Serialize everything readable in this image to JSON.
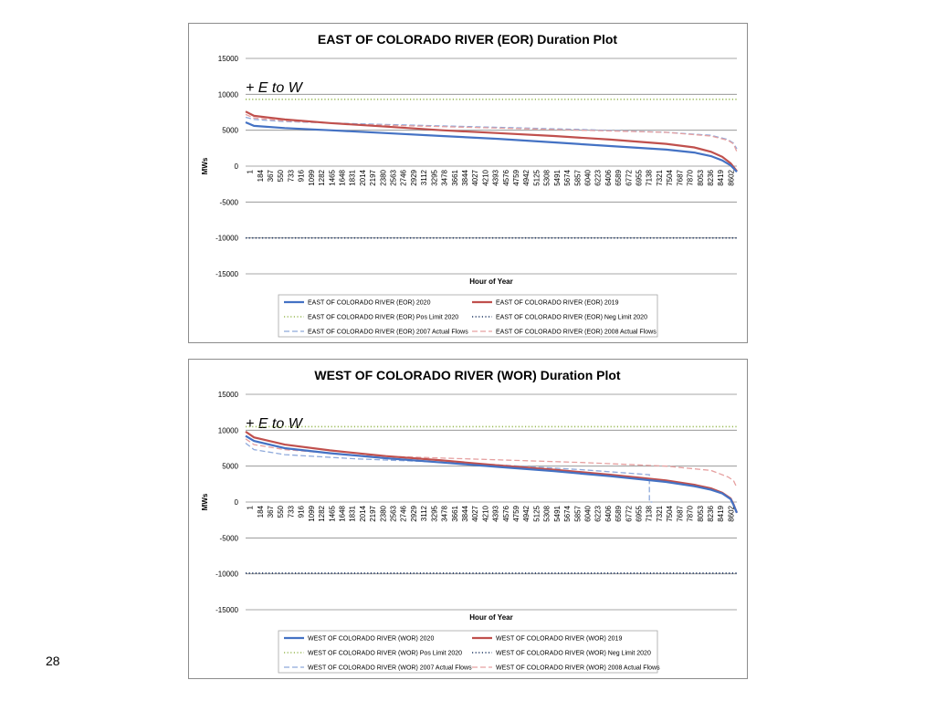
{
  "page_number": "28",
  "chart_data": [
    {
      "type": "line",
      "title": "EAST OF COLORADO RIVER (EOR) Duration Plot",
      "xlabel": "Hour of Year",
      "ylabel": "MWs",
      "annotation": "+ E to W",
      "ylim": [
        -15000,
        15000
      ],
      "yticks": [
        15000,
        10000,
        5000,
        0,
        -5000,
        -10000,
        -15000
      ],
      "x_tick_labels": [
        "1",
        "184",
        "367",
        "550",
        "733",
        "916",
        "1099",
        "1282",
        "1465",
        "1648",
        "1831",
        "2014",
        "2197",
        "2380",
        "2563",
        "2746",
        "2929",
        "3112",
        "3295",
        "3478",
        "3661",
        "3844",
        "4027",
        "4210",
        "4393",
        "4576",
        "4759",
        "4942",
        "5125",
        "5308",
        "5491",
        "5674",
        "5857",
        "6040",
        "6223",
        "6406",
        "6589",
        "6772",
        "6955",
        "7138",
        "7321",
        "7504",
        "7687",
        "7870",
        "8053",
        "8236",
        "8419",
        "8602"
      ],
      "grid": true,
      "legend_position": "bottom",
      "series": [
        {
          "name": "EAST OF COLORADO RIVER (EOR) 2020",
          "color": "#4472c4",
          "style": "solid",
          "x": [
            1,
            150,
            700,
            1500,
            2500,
            3500,
            4500,
            5500,
            6500,
            7500,
            8000,
            8300,
            8500,
            8650,
            8700,
            8760
          ],
          "y": [
            6100,
            5600,
            5300,
            5000,
            4600,
            4200,
            3800,
            3300,
            2800,
            2300,
            1900,
            1400,
            800,
            100,
            -300,
            -800
          ]
        },
        {
          "name": "EAST OF COLORADO RIVER (EOR) 2019",
          "color": "#c0504d",
          "style": "solid",
          "x": [
            1,
            150,
            700,
            1500,
            2500,
            3500,
            4500,
            5500,
            6500,
            7500,
            8000,
            8300,
            8500,
            8650,
            8700,
            8760
          ],
          "y": [
            7600,
            7000,
            6500,
            6000,
            5500,
            5000,
            4600,
            4200,
            3700,
            3100,
            2600,
            2000,
            1300,
            400,
            -100,
            -700
          ]
        },
        {
          "name": "EAST OF COLORADO RIVER (EOR) Pos Limit 2020",
          "color": "#9bbb59",
          "style": "dotted",
          "x": [
            1,
            8760
          ],
          "y": [
            9300,
            9300
          ]
        },
        {
          "name": "EAST OF COLORADO RIVER (EOR) Neg Limit 2020",
          "color": "#1f3864",
          "style": "dotted",
          "x": [
            1,
            8760
          ],
          "y": [
            -10000,
            -10000
          ]
        },
        {
          "name": "EAST OF COLORADO RIVER (EOR) 2007 Actual Flows",
          "color": "#8ea9db",
          "style": "dashed",
          "x": [
            1,
            150,
            700,
            2000,
            4000,
            6000,
            7500,
            8300,
            8600,
            8700,
            8760
          ],
          "y": [
            6800,
            6500,
            6200,
            5900,
            5500,
            5100,
            4700,
            4300,
            3700,
            3200,
            2400
          ]
        },
        {
          "name": "EAST OF COLORADO RIVER (EOR) 2008 Actual Flows",
          "color": "#e6a0a0",
          "style": "dashed",
          "x": [
            1,
            150,
            700,
            2000,
            4000,
            6000,
            7500,
            8300,
            8600,
            8700,
            8760
          ],
          "y": [
            7200,
            6700,
            6300,
            5800,
            5400,
            5000,
            4700,
            4200,
            3600,
            3100,
            2000
          ]
        }
      ]
    },
    {
      "type": "line",
      "title": "WEST OF COLORADO RIVER (WOR) Duration Plot",
      "xlabel": "Hour of Year",
      "ylabel": "MWs",
      "annotation": "+ E to W",
      "ylim": [
        -15000,
        15000
      ],
      "yticks": [
        15000,
        10000,
        5000,
        0,
        -5000,
        -10000,
        -15000
      ],
      "x_tick_labels": [
        "1",
        "184",
        "367",
        "550",
        "733",
        "916",
        "1099",
        "1282",
        "1465",
        "1648",
        "1831",
        "2014",
        "2197",
        "2380",
        "2563",
        "2746",
        "2929",
        "3112",
        "3295",
        "3478",
        "3661",
        "3844",
        "4027",
        "4210",
        "4393",
        "4576",
        "4759",
        "4942",
        "5125",
        "5308",
        "5491",
        "5674",
        "5857",
        "6040",
        "6223",
        "6406",
        "6589",
        "6772",
        "6955",
        "7138",
        "7321",
        "7504",
        "7687",
        "7870",
        "8053",
        "8236",
        "8419",
        "8602"
      ],
      "grid": true,
      "legend_position": "bottom",
      "series": [
        {
          "name": "WEST OF COLORADO RIVER (WOR) 2020",
          "color": "#4472c4",
          "style": "solid",
          "x": [
            1,
            150,
            700,
            1500,
            2500,
            3500,
            4500,
            5500,
            6500,
            7500,
            8000,
            8300,
            8500,
            8650,
            8700,
            8760
          ],
          "y": [
            9200,
            8500,
            7500,
            6800,
            6100,
            5500,
            4900,
            4300,
            3600,
            2800,
            2200,
            1700,
            1200,
            400,
            -400,
            -1500
          ]
        },
        {
          "name": "WEST OF COLORADO RIVER (WOR) 2019",
          "color": "#c0504d",
          "style": "solid",
          "x": [
            1,
            150,
            700,
            1500,
            2500,
            3500,
            4500,
            5500,
            6500,
            7500,
            8000,
            8300,
            8500,
            8650,
            8700,
            8760
          ],
          "y": [
            9800,
            9000,
            8000,
            7200,
            6400,
            5800,
            5100,
            4500,
            3800,
            3000,
            2400,
            1900,
            1300,
            500,
            -300,
            -1500
          ]
        },
        {
          "name": "WEST OF COLORADO RIVER (WOR) Pos Limit 2020",
          "color": "#9bbb59",
          "style": "dotted",
          "x": [
            1,
            8760
          ],
          "y": [
            10500,
            10500
          ]
        },
        {
          "name": "WEST OF COLORADO RIVER (WOR) Neg Limit 2020",
          "color": "#1f3864",
          "style": "dotted",
          "x": [
            1,
            8760
          ],
          "y": [
            -9900,
            -9900
          ]
        },
        {
          "name": "WEST OF COLORADO RIVER (WOR) 2007 Actual Flows",
          "color": "#8ea9db",
          "style": "dashed",
          "x": [
            1,
            150,
            700,
            2000,
            4000,
            6000,
            7200,
            7200,
            7250
          ],
          "y": [
            8200,
            7300,
            6600,
            6000,
            5400,
            4500,
            3800,
            0,
            0
          ]
        },
        {
          "name": "WEST OF COLORADO RIVER (WOR) 2008 Actual Flows",
          "color": "#e6a0a0",
          "style": "dashed",
          "x": [
            1,
            150,
            700,
            2000,
            4000,
            6000,
            7500,
            8300,
            8600,
            8700,
            8760
          ],
          "y": [
            8800,
            8000,
            7300,
            6500,
            6000,
            5500,
            5000,
            4400,
            3500,
            3000,
            2000
          ]
        }
      ]
    }
  ]
}
